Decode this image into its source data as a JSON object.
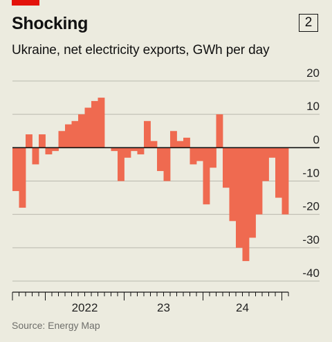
{
  "title": "Shocking",
  "chart_number": "2",
  "subtitle": "Ukraine, net electricity exports, GWh per day",
  "source": "Source: Energy Map",
  "colors": {
    "bar": "#ef6a50",
    "accent_red": "#e3120b",
    "background": "#ecebdf",
    "grid": "#b9b8ad",
    "zero_line": "#111111"
  },
  "chart_data": {
    "type": "bar",
    "title": "Ukraine, net electricity exports, GWh per day",
    "xlabel": "",
    "ylabel": "",
    "ylim": [
      -40,
      20
    ],
    "y_ticks": [
      "20",
      "10",
      "0",
      "-10",
      "-20",
      "-30",
      "-40"
    ],
    "x_tick_labels": [
      "2022",
      "23",
      "24"
    ],
    "x_range": [
      "2021-08",
      "2025-01"
    ],
    "grid": true,
    "series": [
      {
        "values": [
          {
            "x": "2021-08",
            "y": -13
          },
          {
            "x": "2021-09",
            "y": -18
          },
          {
            "x": "2021-10",
            "y": 4
          },
          {
            "x": "2021-11",
            "y": -5
          },
          {
            "x": "2021-12",
            "y": 4
          },
          {
            "x": "2022-01",
            "y": -2
          },
          {
            "x": "2022-02",
            "y": -1
          },
          {
            "x": "2022-03",
            "y": 5
          },
          {
            "x": "2022-04",
            "y": 7
          },
          {
            "x": "2022-05",
            "y": 8
          },
          {
            "x": "2022-06",
            "y": 10
          },
          {
            "x": "2022-07",
            "y": 12
          },
          {
            "x": "2022-08",
            "y": 14
          },
          {
            "x": "2022-09",
            "y": 15
          },
          {
            "x": "2022-10",
            "y": 0
          },
          {
            "x": "2022-11",
            "y": -1
          },
          {
            "x": "2022-12",
            "y": -10
          },
          {
            "x": "2023-01",
            "y": -3
          },
          {
            "x": "2023-02",
            "y": -1
          },
          {
            "x": "2023-03",
            "y": -2
          },
          {
            "x": "2023-04",
            "y": 8
          },
          {
            "x": "2023-05",
            "y": 2
          },
          {
            "x": "2023-06",
            "y": -7
          },
          {
            "x": "2023-07",
            "y": -10
          },
          {
            "x": "2023-08",
            "y": 5
          },
          {
            "x": "2023-09",
            "y": 2
          },
          {
            "x": "2023-10",
            "y": 3
          },
          {
            "x": "2023-11",
            "y": -5
          },
          {
            "x": "2023-12",
            "y": -4
          },
          {
            "x": "2024-01",
            "y": -17
          },
          {
            "x": "2024-02",
            "y": -6
          },
          {
            "x": "2024-03",
            "y": 10
          },
          {
            "x": "2024-04",
            "y": -12
          },
          {
            "x": "2024-05",
            "y": -22
          },
          {
            "x": "2024-06",
            "y": -30
          },
          {
            "x": "2024-07",
            "y": -34
          },
          {
            "x": "2024-08",
            "y": -27
          },
          {
            "x": "2024-09",
            "y": -20
          },
          {
            "x": "2024-10",
            "y": -10
          },
          {
            "x": "2024-11",
            "y": -3
          },
          {
            "x": "2024-12",
            "y": -15
          },
          {
            "x": "2025-01",
            "y": -20
          }
        ]
      }
    ]
  }
}
